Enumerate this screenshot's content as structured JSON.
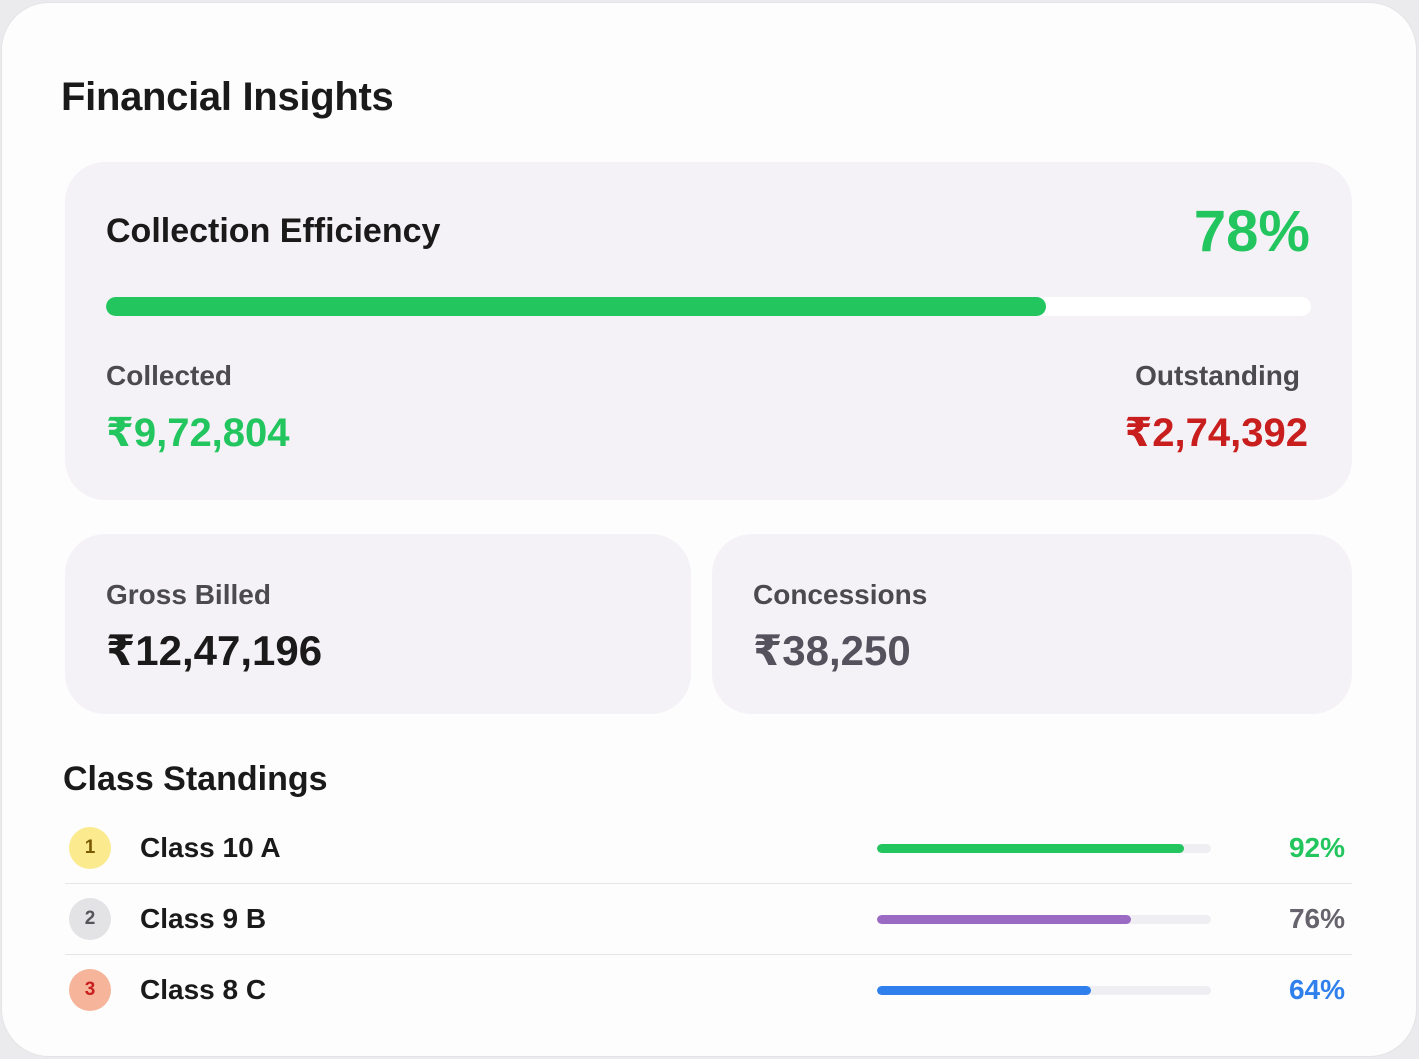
{
  "page": {
    "title": "Financial Insights"
  },
  "efficiency": {
    "title": "Collection Efficiency",
    "percent_label": "78%",
    "progress": 0.78,
    "collected_label": "Collected",
    "collected_value": "₹9,72,804",
    "outstanding_label": "Outstanding",
    "outstanding_value": "₹2,74,392"
  },
  "gross": {
    "label": "Gross Billed",
    "value": "₹12,47,196"
  },
  "concessions": {
    "label": "Concessions",
    "value": "₹38,250"
  },
  "standings": {
    "title": "Class Standings",
    "rows": [
      {
        "rank": "1",
        "name": "Class 10 A",
        "percent_label": "92%",
        "progress": 0.92,
        "bar_color": "#22c55e",
        "pct_color": "#22c55e",
        "rank_bg": "#fbeb8e",
        "rank_color": "#7a5a00"
      },
      {
        "rank": "2",
        "name": "Class 9 B",
        "percent_label": "76%",
        "progress": 0.76,
        "bar_color": "#9b6bc3",
        "pct_color": "#66636d",
        "rank_bg": "#e3e3e6",
        "rank_color": "#55555a"
      },
      {
        "rank": "3",
        "name": "Class 8 C",
        "percent_label": "64%",
        "progress": 0.64,
        "bar_color": "#2f80ed",
        "pct_color": "#2f80ed",
        "rank_bg": "#f6b59b",
        "rank_color": "#c81e1e"
      }
    ]
  }
}
